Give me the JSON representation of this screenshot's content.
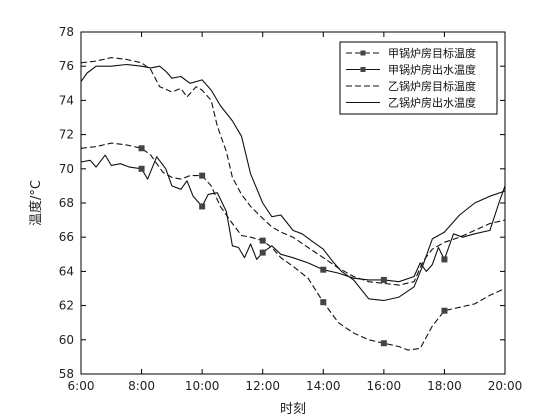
{
  "chart_data": {
    "type": "line",
    "xlabel": "时刻",
    "ylabel": "温度/°C",
    "xlim": [
      6,
      20
    ],
    "ylim": [
      58,
      78
    ],
    "x_ticks": [
      6,
      8,
      10,
      12,
      14,
      16,
      18,
      20
    ],
    "x_tick_labels": [
      "6:00",
      "8:00",
      "10:00",
      "12:00",
      "14:00",
      "16:00",
      "18:00",
      "20:00"
    ],
    "y_ticks": [
      58,
      60,
      62,
      64,
      66,
      68,
      70,
      72,
      74,
      76,
      78
    ],
    "y_tick_labels": [
      "58",
      "60",
      "62",
      "64",
      "66",
      "68",
      "70",
      "72",
      "74",
      "76",
      "78"
    ],
    "grid": false,
    "legend_position": "top-right",
    "series": [
      {
        "name": "甲锅炉房目标温度",
        "style": "dashed",
        "marker": "square",
        "marker_x": [
          8,
          10,
          12,
          14,
          16,
          18
        ],
        "points": [
          [
            6.0,
            71.2
          ],
          [
            6.5,
            71.3
          ],
          [
            7.0,
            71.5
          ],
          [
            7.5,
            71.4
          ],
          [
            8.0,
            71.2
          ],
          [
            8.3,
            70.8
          ],
          [
            8.7,
            69.8
          ],
          [
            9.0,
            69.5
          ],
          [
            9.3,
            69.4
          ],
          [
            9.6,
            69.6
          ],
          [
            10.0,
            69.6
          ],
          [
            10.3,
            69.0
          ],
          [
            10.6,
            67.8
          ],
          [
            11.0,
            66.8
          ],
          [
            11.3,
            66.1
          ],
          [
            11.6,
            66.0
          ],
          [
            12.0,
            65.8
          ],
          [
            12.3,
            65.4
          ],
          [
            12.6,
            64.8
          ],
          [
            13.0,
            64.3
          ],
          [
            13.5,
            63.6
          ],
          [
            14.0,
            62.2
          ],
          [
            14.5,
            61.0
          ],
          [
            15.0,
            60.4
          ],
          [
            15.5,
            60.0
          ],
          [
            16.0,
            59.8
          ],
          [
            16.5,
            59.6
          ],
          [
            16.8,
            59.4
          ],
          [
            17.2,
            59.5
          ],
          [
            17.6,
            60.8
          ],
          [
            18.0,
            61.7
          ],
          [
            18.5,
            61.9
          ],
          [
            19.0,
            62.1
          ],
          [
            19.5,
            62.6
          ],
          [
            20.0,
            63.0
          ]
        ]
      },
      {
        "name": "甲锅炉房出水温度",
        "style": "solid",
        "marker": "square",
        "marker_x": [
          8,
          10,
          12,
          14,
          16,
          18
        ],
        "points": [
          [
            6.0,
            70.4
          ],
          [
            6.3,
            70.5
          ],
          [
            6.5,
            70.1
          ],
          [
            6.8,
            70.8
          ],
          [
            7.0,
            70.2
          ],
          [
            7.3,
            70.3
          ],
          [
            7.6,
            70.1
          ],
          [
            8.0,
            70.0
          ],
          [
            8.2,
            69.4
          ],
          [
            8.5,
            70.7
          ],
          [
            8.8,
            70.0
          ],
          [
            9.0,
            69.0
          ],
          [
            9.3,
            68.8
          ],
          [
            9.5,
            69.3
          ],
          [
            9.7,
            68.4
          ],
          [
            10.0,
            67.8
          ],
          [
            10.2,
            68.5
          ],
          [
            10.5,
            68.6
          ],
          [
            10.8,
            67.5
          ],
          [
            11.0,
            65.5
          ],
          [
            11.2,
            65.4
          ],
          [
            11.4,
            64.8
          ],
          [
            11.6,
            65.6
          ],
          [
            11.8,
            64.7
          ],
          [
            12.0,
            65.1
          ],
          [
            12.3,
            65.5
          ],
          [
            12.6,
            65.0
          ],
          [
            13.0,
            64.8
          ],
          [
            13.5,
            64.5
          ],
          [
            14.0,
            64.1
          ],
          [
            14.5,
            63.9
          ],
          [
            15.0,
            63.6
          ],
          [
            15.5,
            63.5
          ],
          [
            16.0,
            63.5
          ],
          [
            16.5,
            63.4
          ],
          [
            17.0,
            63.7
          ],
          [
            17.2,
            64.5
          ],
          [
            17.4,
            64.0
          ],
          [
            17.6,
            64.4
          ],
          [
            17.8,
            65.4
          ],
          [
            18.0,
            64.7
          ],
          [
            18.3,
            66.2
          ],
          [
            18.6,
            66.0
          ],
          [
            19.0,
            66.2
          ],
          [
            19.5,
            66.4
          ],
          [
            19.8,
            68.0
          ],
          [
            20.0,
            69.0
          ]
        ]
      },
      {
        "name": "乙锅炉房目标温度",
        "style": "dashed",
        "marker": "none",
        "points": [
          [
            6.0,
            76.2
          ],
          [
            6.5,
            76.3
          ],
          [
            7.0,
            76.5
          ],
          [
            7.5,
            76.4
          ],
          [
            8.0,
            76.2
          ],
          [
            8.3,
            75.8
          ],
          [
            8.6,
            74.8
          ],
          [
            9.0,
            74.5
          ],
          [
            9.3,
            74.7
          ],
          [
            9.5,
            74.2
          ],
          [
            9.8,
            74.8
          ],
          [
            10.0,
            74.6
          ],
          [
            10.3,
            74.0
          ],
          [
            10.5,
            72.5
          ],
          [
            10.8,
            71.0
          ],
          [
            11.0,
            69.5
          ],
          [
            11.3,
            68.5
          ],
          [
            11.6,
            67.8
          ],
          [
            12.0,
            67.1
          ],
          [
            12.3,
            66.6
          ],
          [
            12.6,
            66.3
          ],
          [
            13.0,
            66.0
          ],
          [
            13.5,
            65.4
          ],
          [
            14.0,
            64.8
          ],
          [
            14.5,
            64.2
          ],
          [
            15.0,
            63.7
          ],
          [
            15.5,
            63.4
          ],
          [
            16.0,
            63.3
          ],
          [
            16.5,
            63.2
          ],
          [
            17.0,
            63.4
          ],
          [
            17.3,
            64.6
          ],
          [
            17.6,
            65.3
          ],
          [
            18.0,
            65.7
          ],
          [
            18.5,
            66.0
          ],
          [
            19.0,
            66.4
          ],
          [
            19.5,
            66.8
          ],
          [
            20.0,
            67.0
          ]
        ]
      },
      {
        "name": "乙锅炉房出水温度",
        "style": "solid",
        "marker": "none",
        "points": [
          [
            6.0,
            75.1
          ],
          [
            6.2,
            75.6
          ],
          [
            6.5,
            76.0
          ],
          [
            7.0,
            76.0
          ],
          [
            7.5,
            76.1
          ],
          [
            8.0,
            76.0
          ],
          [
            8.3,
            75.9
          ],
          [
            8.6,
            76.0
          ],
          [
            8.8,
            75.7
          ],
          [
            9.0,
            75.3
          ],
          [
            9.3,
            75.4
          ],
          [
            9.6,
            75.0
          ],
          [
            10.0,
            75.2
          ],
          [
            10.3,
            74.6
          ],
          [
            10.6,
            73.7
          ],
          [
            11.0,
            72.8
          ],
          [
            11.3,
            71.9
          ],
          [
            11.6,
            69.7
          ],
          [
            12.0,
            68.0
          ],
          [
            12.3,
            67.2
          ],
          [
            12.6,
            67.3
          ],
          [
            13.0,
            66.4
          ],
          [
            13.3,
            66.2
          ],
          [
            13.6,
            65.8
          ],
          [
            14.0,
            65.3
          ],
          [
            14.3,
            64.6
          ],
          [
            14.6,
            64.0
          ],
          [
            15.0,
            63.5
          ],
          [
            15.5,
            62.4
          ],
          [
            16.0,
            62.3
          ],
          [
            16.5,
            62.5
          ],
          [
            17.0,
            63.1
          ],
          [
            17.3,
            64.4
          ],
          [
            17.6,
            65.9
          ],
          [
            18.0,
            66.3
          ],
          [
            18.5,
            67.3
          ],
          [
            19.0,
            68.0
          ],
          [
            19.5,
            68.4
          ],
          [
            20.0,
            68.7
          ]
        ]
      }
    ]
  }
}
